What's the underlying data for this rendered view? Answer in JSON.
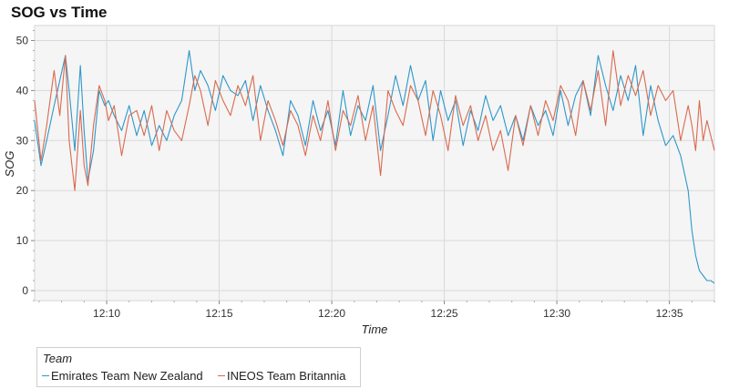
{
  "chart_data": {
    "type": "line",
    "title": "SOG vs Time",
    "xlabel": "Time",
    "ylabel": "SOG",
    "xlim": [
      "12:06:48",
      "12:37:00"
    ],
    "ylim": [
      -2,
      53
    ],
    "x_ticks": [
      "12:10",
      "12:15",
      "12:20",
      "12:25",
      "12:30",
      "12:35"
    ],
    "y_ticks": [
      0,
      10,
      20,
      30,
      40,
      50
    ],
    "grid": true,
    "legend": {
      "title": "Team",
      "placement": "bottom-left outside plot"
    },
    "series": [
      {
        "name": "Emirates Team New Zealand",
        "color": "#2e97c9",
        "x": [
          "12:06:48",
          "12:07:05",
          "12:07:20",
          "12:07:40",
          "12:07:55",
          "12:08:10",
          "12:08:20",
          "12:08:35",
          "12:08:50",
          "12:09:00",
          "12:09:10",
          "12:09:25",
          "12:09:40",
          "12:09:55",
          "12:10:05",
          "12:10:20",
          "12:10:40",
          "12:11:00",
          "12:11:20",
          "12:11:40",
          "12:12:00",
          "12:12:20",
          "12:12:40",
          "12:13:00",
          "12:13:20",
          "12:13:40",
          "12:13:55",
          "12:14:10",
          "12:14:30",
          "12:14:50",
          "12:15:10",
          "12:15:30",
          "12:15:50",
          "12:16:10",
          "12:16:30",
          "12:16:50",
          "12:17:10",
          "12:17:30",
          "12:17:50",
          "12:18:10",
          "12:18:30",
          "12:18:50",
          "12:19:10",
          "12:19:30",
          "12:19:50",
          "12:20:10",
          "12:20:30",
          "12:20:50",
          "12:21:10",
          "12:21:30",
          "12:21:50",
          "12:22:10",
          "12:22:30",
          "12:22:50",
          "12:23:10",
          "12:23:30",
          "12:23:50",
          "12:24:10",
          "12:24:30",
          "12:24:50",
          "12:25:10",
          "12:25:30",
          "12:25:50",
          "12:26:10",
          "12:26:30",
          "12:26:50",
          "12:27:10",
          "12:27:30",
          "12:27:50",
          "12:28:10",
          "12:28:30",
          "12:28:50",
          "12:29:10",
          "12:29:30",
          "12:29:50",
          "12:30:10",
          "12:30:30",
          "12:30:50",
          "12:31:10",
          "12:31:30",
          "12:31:50",
          "12:32:10",
          "12:32:30",
          "12:32:50",
          "12:33:10",
          "12:33:30",
          "12:33:50",
          "12:34:10",
          "12:34:30",
          "12:34:50",
          "12:35:10",
          "12:35:30",
          "12:35:50",
          "12:36:00",
          "12:36:10",
          "12:36:20",
          "12:36:30",
          "12:36:40",
          "12:36:50",
          "12:37:00"
        ],
        "values": [
          34,
          25,
          30,
          37,
          42,
          47,
          40,
          28,
          45,
          32,
          22,
          28,
          40,
          37,
          38,
          35,
          32,
          37,
          31,
          36,
          29,
          33,
          30,
          35,
          38,
          48,
          40,
          44,
          41,
          36,
          43,
          40,
          39,
          42,
          34,
          41,
          36,
          32,
          27,
          38,
          35,
          29,
          38,
          32,
          36,
          29,
          40,
          31,
          37,
          34,
          41,
          28,
          35,
          43,
          37,
          45,
          38,
          42,
          30,
          40,
          34,
          38,
          29,
          36,
          32,
          39,
          34,
          37,
          31,
          35,
          30,
          37,
          33,
          36,
          31,
          40,
          33,
          39,
          42,
          35,
          47,
          41,
          36,
          43,
          38,
          45,
          31,
          41,
          34,
          29,
          31,
          27,
          20,
          12,
          7,
          4,
          3,
          2,
          2,
          1.5
        ]
      },
      {
        "name": "INEOS Team Britannia",
        "color": "#d96a4f",
        "x": [
          "12:06:48",
          "12:07:05",
          "12:07:20",
          "12:07:40",
          "12:07:55",
          "12:08:10",
          "12:08:20",
          "12:08:35",
          "12:08:50",
          "12:09:00",
          "12:09:10",
          "12:09:25",
          "12:09:40",
          "12:09:55",
          "12:10:05",
          "12:10:20",
          "12:10:40",
          "12:11:00",
          "12:11:20",
          "12:11:40",
          "12:12:00",
          "12:12:20",
          "12:12:40",
          "12:13:00",
          "12:13:20",
          "12:13:40",
          "12:13:55",
          "12:14:10",
          "12:14:30",
          "12:14:50",
          "12:15:10",
          "12:15:30",
          "12:15:50",
          "12:16:10",
          "12:16:30",
          "12:16:50",
          "12:17:10",
          "12:17:30",
          "12:17:50",
          "12:18:10",
          "12:18:30",
          "12:18:50",
          "12:19:10",
          "12:19:30",
          "12:19:50",
          "12:20:10",
          "12:20:30",
          "12:20:50",
          "12:21:10",
          "12:21:30",
          "12:21:50",
          "12:22:10",
          "12:22:30",
          "12:22:50",
          "12:23:10",
          "12:23:30",
          "12:23:50",
          "12:24:10",
          "12:24:30",
          "12:24:50",
          "12:25:10",
          "12:25:30",
          "12:25:50",
          "12:26:10",
          "12:26:30",
          "12:26:50",
          "12:27:10",
          "12:27:30",
          "12:27:50",
          "12:28:10",
          "12:28:30",
          "12:28:50",
          "12:29:10",
          "12:29:30",
          "12:29:50",
          "12:30:10",
          "12:30:30",
          "12:30:50",
          "12:31:10",
          "12:31:30",
          "12:31:50",
          "12:32:10",
          "12:32:30",
          "12:32:50",
          "12:33:10",
          "12:33:30",
          "12:33:50",
          "12:34:10",
          "12:34:30",
          "12:34:50",
          "12:35:10",
          "12:35:30",
          "12:35:50",
          "12:36:00",
          "12:36:10",
          "12:36:20",
          "12:36:30",
          "12:36:40",
          "12:36:50",
          "12:37:00"
        ],
        "values": [
          38,
          26,
          33,
          44,
          35,
          47,
          30,
          20,
          36,
          25,
          21,
          33,
          41,
          38,
          34,
          37,
          27,
          35,
          36,
          31,
          37,
          28,
          36,
          32,
          30,
          37,
          43,
          40,
          33,
          42,
          38,
          35,
          41,
          37,
          43,
          30,
          38,
          34,
          29,
          36,
          33,
          27,
          35,
          30,
          38,
          28,
          36,
          33,
          39,
          30,
          37,
          23,
          40,
          36,
          33,
          41,
          38,
          31,
          40,
          35,
          28,
          39,
          33,
          37,
          30,
          35,
          28,
          32,
          24,
          35,
          29,
          37,
          31,
          38,
          34,
          41,
          38,
          31,
          42,
          36,
          44,
          33,
          48,
          37,
          43,
          39,
          44,
          35,
          41,
          38,
          40,
          30,
          37,
          33,
          28,
          38,
          30,
          34,
          31,
          28
        ]
      }
    ]
  }
}
